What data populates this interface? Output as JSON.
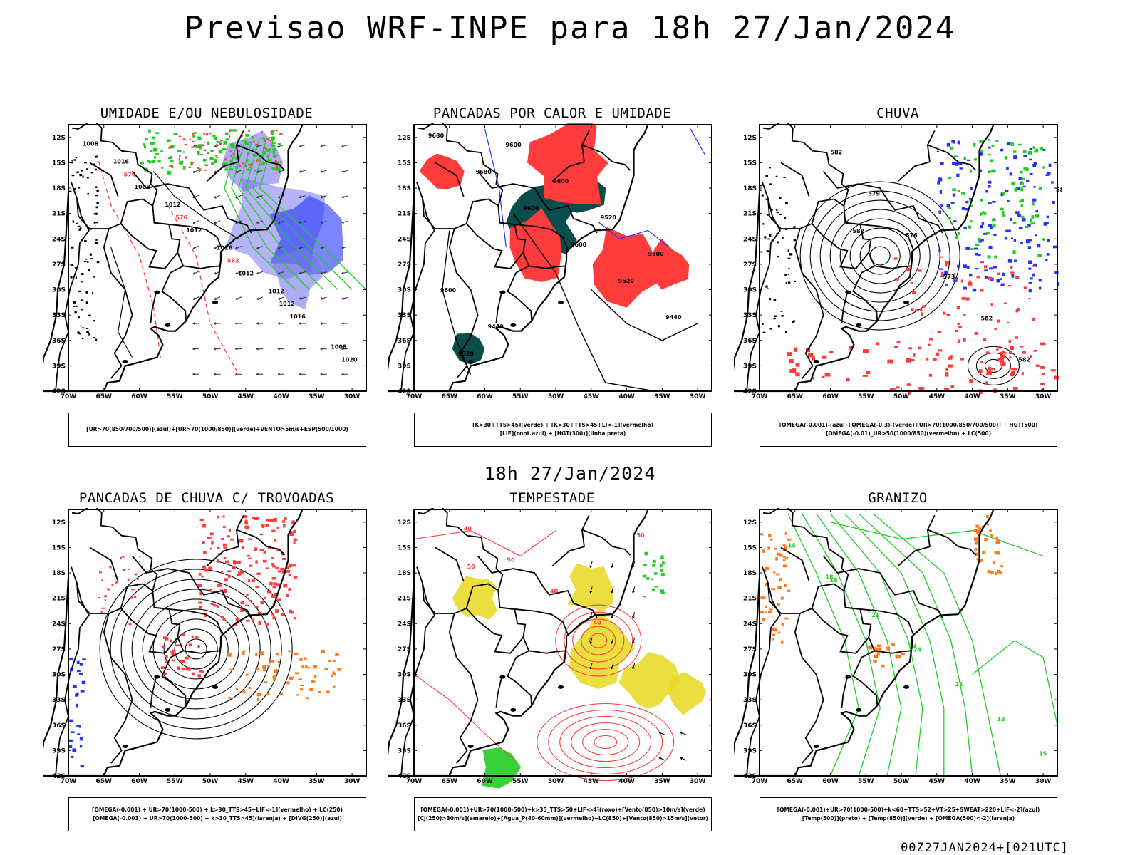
{
  "title": "Previsao WRF-INPE  para 18h 27/Jan/2024",
  "subtitle": "18h 27/Jan/2024",
  "footer": "00Z27JAN2024+[021UTC]",
  "axes": {
    "lat_labels": [
      "12S",
      "15S",
      "18S",
      "21S",
      "24S",
      "27S",
      "30S",
      "33S",
      "36S",
      "39S",
      "42S"
    ],
    "lon_labels": [
      "70W",
      "65W",
      "60W",
      "55W",
      "50W",
      "45W",
      "40W",
      "35W",
      "30W"
    ]
  },
  "colors": {
    "red": "#ff3b3b",
    "green": "#22cc22",
    "blue": "#2233ff",
    "lightblue": "#7777ee",
    "darkteal": "#0b4d4a",
    "yellow": "#e8d820",
    "orange": "#ff7a1a",
    "black": "#000000"
  },
  "panels": [
    {
      "title": "UMIDADE E/OU NEBULOSIDADE",
      "legend": [
        "[UR>70(850/700/500)](azul)+[UR>70(1000/850)](verde)+VENTO>5m/s+ESP(500/1000)"
      ],
      "labels": [
        "1008",
        "1008",
        "1012",
        "1012",
        "1016",
        "1020",
        "570",
        "576",
        "582",
        "1012",
        "1008",
        "1016",
        "1012",
        "1016",
        "1012"
      ]
    },
    {
      "title": "PANCADAS POR CALOR E UMIDADE",
      "legend": [
        "[K>30+TTS>45](verde) + [K>30+TTS>45+LI<-1](vermelho)",
        "[LIF](cont.azul) + [HGT(300)](linha preta)"
      ],
      "labels": [
        "9680",
        "9680",
        "9600",
        "9600",
        "9520",
        "9440",
        "9520",
        "9600",
        "9600",
        "9520",
        "9800",
        "9600",
        "9440"
      ]
    },
    {
      "title": "CHUVA",
      "legend": [
        "[OMEGA(-0.001)-(azul)+OMEGA(-0.3)-(verde)+UR>70(1000/850/700/500)] + HGT(500)",
        "[OMEGA(-0.01)_UR>50(1000/850)(vermelho) + LC(500)"
      ],
      "labels": [
        "582",
        "579",
        "576",
        "573",
        "582",
        "582",
        "582",
        "582"
      ]
    },
    {
      "title": "PANCADAS DE CHUVA C/ TROVOADAS",
      "legend": [
        "[OMEGA(-0.001) + UR>70(1000-500) + k>30_TTS>45+LIF<-1](vermelho) + LC(250)",
        "[OMEGA(-0.001) + UR>70(1000-500) + k>30_TTS>45](laranja) + [DIVG(250)](azul)"
      ],
      "labels": []
    },
    {
      "title": "TEMPESTADE",
      "legend": [
        "[OMEGA(-0.001)+UR>70(1000-500)+k>35_TTS>50+LIF<-4](roxo)+[Vento(850)>10m/s](verde)",
        "[CJ(250)>30m/s](amarelo)+[Agua_P(40-60mm)](vermelho)+LC(850)+[Vento(850)>15m/s](vetor)"
      ],
      "labels": [
        "40",
        "50",
        "40",
        "40",
        "50",
        "50"
      ]
    },
    {
      "title": "GRANIZO",
      "legend": [
        "[OMEGA(-0.001)+UR>70(1000-500)+k<60+TTS>52+VT>25+SWEAT>220+LIF<-2](azul)",
        "[Temp(500)](preto) + [Temp(850)](verde) + [OMEGA(500)<-2](laranja)"
      ],
      "labels": [
        "15",
        "18",
        "21",
        "24",
        "21",
        "18",
        "15",
        "18",
        "21",
        "24"
      ]
    }
  ]
}
